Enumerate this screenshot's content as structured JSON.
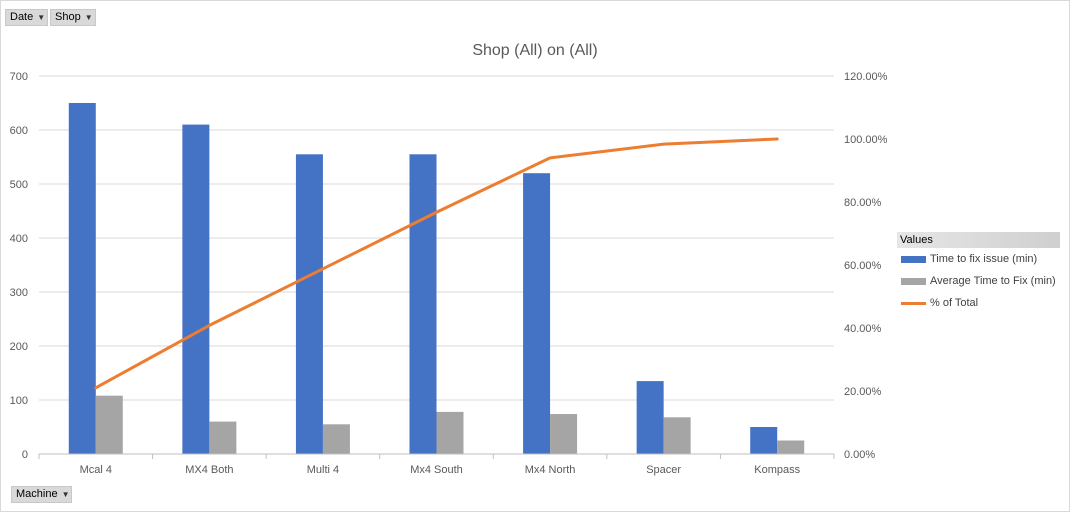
{
  "filters": {
    "date_label": "Date",
    "shop_label": "Shop",
    "machine_label": "Machine",
    "dropdown_icon": "dropdown-arrow-icon"
  },
  "colors": {
    "bar_time": "#4472c4",
    "bar_avg": "#a5a5a5",
    "line_pct": "#ed7d31",
    "grid": "#d9d9d9"
  },
  "legend": {
    "header": "Values",
    "items": [
      "Time to fix issue (min)",
      "Average Time to Fix (min)",
      "% of Total"
    ]
  },
  "chart_data": {
    "type": "bar",
    "title": "Shop (All) on (All)",
    "xlabel": "",
    "ylabel": "",
    "categories": [
      "Mcal 4",
      "MX4 Both",
      "Multi 4",
      "Mx4 South",
      "Mx4 North",
      "Spacer",
      "Kompass"
    ],
    "series": [
      {
        "name": "Time to fix issue (min)",
        "type": "bar",
        "axis": "left",
        "values": [
          650,
          610,
          555,
          555,
          520,
          135,
          50
        ]
      },
      {
        "name": "Average Time to Fix (min)",
        "type": "bar",
        "axis": "left",
        "values": [
          108,
          60,
          55,
          78,
          74,
          68,
          25
        ]
      },
      {
        "name": "% of Total",
        "type": "line",
        "axis": "right",
        "values": [
          0.2103,
          0.4083,
          0.5878,
          0.7674,
          0.9401,
          0.9838,
          1.0
        ]
      }
    ],
    "ylim": [
      0,
      700
    ],
    "yticks": [
      "0",
      "100",
      "200",
      "300",
      "400",
      "500",
      "600",
      "700"
    ],
    "y2lim": [
      0,
      1.2
    ],
    "y2ticks": [
      "0.00%",
      "20.00%",
      "40.00%",
      "60.00%",
      "80.00%",
      "100.00%",
      "120.00%"
    ],
    "grid": true,
    "legend_position": "right"
  }
}
